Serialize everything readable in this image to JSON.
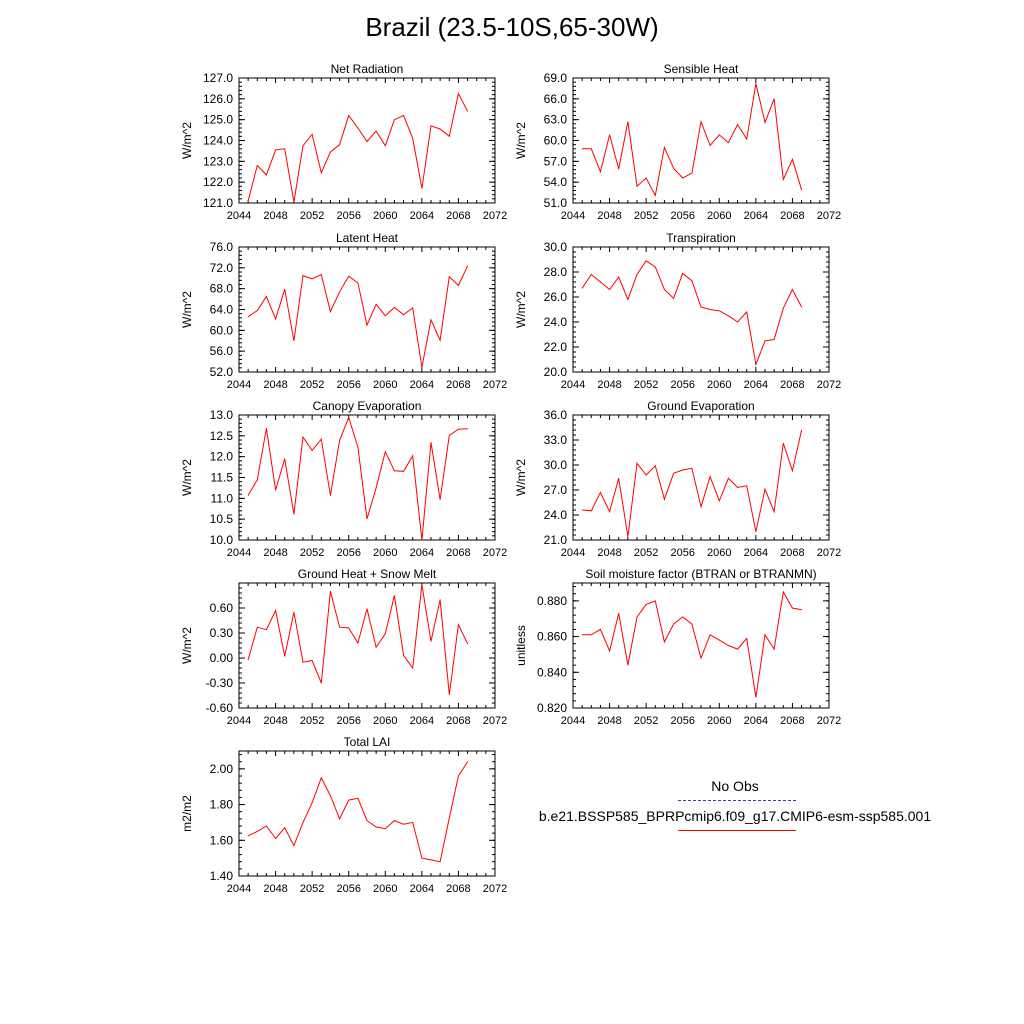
{
  "page": {
    "title": "Brazil (23.5-10S,65-30W)"
  },
  "legend": {
    "entries": [
      {
        "label": "No Obs",
        "color": "#3b3b9a",
        "style": "dashed"
      },
      {
        "label": "b.e21.BSSP585_BPRPcmip6.f09_g17.CMIP6-esm-ssp585.001",
        "color": "#ff0000",
        "style": "solid"
      }
    ]
  },
  "chart_data": [
    {
      "type": "line",
      "title": "Net Radiation",
      "xlabel": "",
      "ylabel": "W/m^2",
      "xlim": [
        2044,
        2072
      ],
      "ylim": [
        121.0,
        127.0
      ],
      "xticks": [
        "2044",
        "2048",
        "2052",
        "2056",
        "2060",
        "2064",
        "2068",
        "2072"
      ],
      "yticks": [
        "121.0",
        "122.0",
        "123.0",
        "124.0",
        "125.0",
        "126.0",
        "127.0"
      ],
      "series": [
        {
          "color": "#ff0000",
          "x": [
            2045,
            2046,
            2047,
            2048,
            2049,
            2050,
            2051,
            2052,
            2053,
            2054,
            2055,
            2056,
            2057,
            2058,
            2059,
            2060,
            2061,
            2062,
            2063,
            2064,
            2065,
            2066,
            2067,
            2068,
            2069
          ],
          "values": [
            121.1,
            122.8,
            122.35,
            123.55,
            123.6,
            121.05,
            123.75,
            124.3,
            122.45,
            123.45,
            123.8,
            125.2,
            124.6,
            123.95,
            124.45,
            123.75,
            125.0,
            125.2,
            124.1,
            121.7,
            124.7,
            124.55,
            124.2,
            126.25,
            125.4
          ]
        }
      ]
    },
    {
      "type": "line",
      "title": "Sensible Heat",
      "xlabel": "",
      "ylabel": "W/m^2",
      "xlim": [
        2044,
        2072
      ],
      "ylim": [
        51.0,
        69.0
      ],
      "xticks": [
        "2044",
        "2048",
        "2052",
        "2056",
        "2060",
        "2064",
        "2068",
        "2072"
      ],
      "yticks": [
        "51.0",
        "54.0",
        "57.0",
        "60.0",
        "63.0",
        "66.0",
        "69.0"
      ],
      "series": [
        {
          "color": "#ff0000",
          "x": [
            2045,
            2046,
            2047,
            2048,
            2049,
            2050,
            2051,
            2052,
            2053,
            2054,
            2055,
            2056,
            2057,
            2058,
            2059,
            2060,
            2061,
            2062,
            2063,
            2064,
            2065,
            2066,
            2067,
            2068,
            2069
          ],
          "values": [
            58.8,
            58.8,
            55.5,
            60.8,
            55.9,
            62.7,
            53.4,
            54.6,
            52.1,
            59.0,
            56.0,
            54.6,
            55.3,
            62.7,
            59.3,
            60.8,
            59.7,
            62.3,
            60.2,
            68.2,
            62.6,
            66.0,
            54.4,
            57.3,
            52.9
          ]
        }
      ]
    },
    {
      "type": "line",
      "title": "Latent Heat",
      "xlabel": "",
      "ylabel": "W/m^2",
      "xlim": [
        2044,
        2072
      ],
      "ylim": [
        52.0,
        76.0
      ],
      "xticks": [
        "2044",
        "2048",
        "2052",
        "2056",
        "2060",
        "2064",
        "2068",
        "2072"
      ],
      "yticks": [
        "52.0",
        "56.0",
        "60.0",
        "64.0",
        "68.0",
        "72.0",
        "76.0"
      ],
      "series": [
        {
          "color": "#ff0000",
          "x": [
            2045,
            2046,
            2047,
            2048,
            2049,
            2050,
            2051,
            2052,
            2053,
            2054,
            2055,
            2056,
            2057,
            2058,
            2059,
            2060,
            2061,
            2062,
            2063,
            2064,
            2065,
            2066,
            2067,
            2068,
            2069
          ],
          "values": [
            62.6,
            63.8,
            66.5,
            62.2,
            67.9,
            58.0,
            70.5,
            69.9,
            70.7,
            63.6,
            67.4,
            70.4,
            69.1,
            61.0,
            65.0,
            62.8,
            64.4,
            63.0,
            64.3,
            52.9,
            62.0,
            58.1,
            70.3,
            68.6,
            72.4
          ]
        }
      ]
    },
    {
      "type": "line",
      "title": "Transpiration",
      "xlabel": "",
      "ylabel": "W/m^2",
      "xlim": [
        2044,
        2072
      ],
      "ylim": [
        20.0,
        30.0
      ],
      "xticks": [
        "2044",
        "2048",
        "2052",
        "2056",
        "2060",
        "2064",
        "2068",
        "2072"
      ],
      "yticks": [
        "20.0",
        "22.0",
        "24.0",
        "26.0",
        "28.0",
        "30.0"
      ],
      "series": [
        {
          "color": "#ff0000",
          "x": [
            2045,
            2046,
            2047,
            2048,
            2049,
            2050,
            2051,
            2052,
            2053,
            2054,
            2055,
            2056,
            2057,
            2058,
            2059,
            2060,
            2061,
            2062,
            2063,
            2064,
            2065,
            2066,
            2067,
            2068,
            2069
          ],
          "values": [
            26.7,
            27.8,
            27.2,
            26.6,
            27.6,
            25.8,
            27.8,
            28.9,
            28.4,
            26.6,
            25.9,
            27.9,
            27.3,
            25.2,
            25.0,
            24.9,
            24.5,
            24.0,
            24.8,
            20.6,
            22.5,
            22.6,
            25.1,
            26.6,
            25.2
          ]
        }
      ]
    },
    {
      "type": "line",
      "title": "Canopy Evaporation",
      "xlabel": "",
      "ylabel": "W/m^2",
      "xlim": [
        2044,
        2072
      ],
      "ylim": [
        10.0,
        13.0
      ],
      "xticks": [
        "2044",
        "2048",
        "2052",
        "2056",
        "2060",
        "2064",
        "2068",
        "2072"
      ],
      "yticks": [
        "10.0",
        "10.5",
        "11.0",
        "11.5",
        "12.0",
        "12.5",
        "13.0"
      ],
      "series": [
        {
          "color": "#ff0000",
          "x": [
            2045,
            2046,
            2047,
            2048,
            2049,
            2050,
            2051,
            2052,
            2053,
            2054,
            2055,
            2056,
            2057,
            2058,
            2059,
            2060,
            2061,
            2062,
            2063,
            2064,
            2065,
            2066,
            2067,
            2068,
            2069
          ],
          "values": [
            11.07,
            11.45,
            12.68,
            11.2,
            11.95,
            10.62,
            12.47,
            12.15,
            12.42,
            11.07,
            12.39,
            12.94,
            12.23,
            10.51,
            11.25,
            12.12,
            11.66,
            11.65,
            12.02,
            10.0,
            12.34,
            10.97,
            12.51,
            12.66,
            12.67
          ]
        }
      ]
    },
    {
      "type": "line",
      "title": "Ground Evaporation",
      "xlabel": "",
      "ylabel": "W/m^2",
      "xlim": [
        2044,
        2072
      ],
      "ylim": [
        21.0,
        36.0
      ],
      "xticks": [
        "2044",
        "2048",
        "2052",
        "2056",
        "2060",
        "2064",
        "2068",
        "2072"
      ],
      "yticks": [
        "21.0",
        "24.0",
        "27.0",
        "30.0",
        "33.0",
        "36.0"
      ],
      "series": [
        {
          "color": "#ff0000",
          "x": [
            2045,
            2046,
            2047,
            2048,
            2049,
            2050,
            2051,
            2052,
            2053,
            2054,
            2055,
            2056,
            2057,
            2058,
            2059,
            2060,
            2061,
            2062,
            2063,
            2064,
            2065,
            2066,
            2067,
            2068,
            2069
          ],
          "values": [
            24.6,
            24.5,
            26.7,
            24.4,
            28.4,
            21.4,
            30.2,
            28.8,
            29.9,
            25.9,
            29.0,
            29.4,
            29.6,
            25.0,
            28.6,
            25.7,
            28.4,
            27.3,
            27.5,
            22.0,
            27.1,
            24.4,
            32.6,
            29.3,
            34.2
          ]
        }
      ]
    },
    {
      "type": "line",
      "title": "Ground Heat + Snow Melt",
      "xlabel": "",
      "ylabel": "W/m^2",
      "xlim": [
        2044,
        2072
      ],
      "ylim": [
        -0.6,
        0.9
      ],
      "xticks": [
        "2044",
        "2048",
        "2052",
        "2056",
        "2060",
        "2064",
        "2068",
        "2072"
      ],
      "yticks": [
        "-0.60",
        "-0.30",
        "0.00",
        "0.30",
        "0.60"
      ],
      "series": [
        {
          "color": "#ff0000",
          "x": [
            2045,
            2046,
            2047,
            2048,
            2049,
            2050,
            2051,
            2052,
            2053,
            2054,
            2055,
            2056,
            2057,
            2058,
            2059,
            2060,
            2061,
            2062,
            2063,
            2064,
            2065,
            2066,
            2067,
            2068,
            2069
          ],
          "values": [
            -0.02,
            0.37,
            0.34,
            0.57,
            0.02,
            0.55,
            -0.05,
            -0.03,
            -0.3,
            0.8,
            0.37,
            0.36,
            0.18,
            0.59,
            0.13,
            0.29,
            0.75,
            0.03,
            -0.12,
            0.88,
            0.2,
            0.7,
            -0.44,
            0.4,
            0.17
          ]
        }
      ]
    },
    {
      "type": "line",
      "title": "Soil moisture factor (BTRAN or BTRANMN)",
      "xlabel": "",
      "ylabel": "unitless",
      "xlim": [
        2044,
        2072
      ],
      "ylim": [
        0.82,
        0.89
      ],
      "xticks": [
        "2044",
        "2048",
        "2052",
        "2056",
        "2060",
        "2064",
        "2068",
        "2072"
      ],
      "yticks": [
        "0.820",
        "0.840",
        "0.860",
        "0.880"
      ],
      "series": [
        {
          "color": "#ff0000",
          "x": [
            2045,
            2046,
            2047,
            2048,
            2049,
            2050,
            2051,
            2052,
            2053,
            2054,
            2055,
            2056,
            2057,
            2058,
            2059,
            2060,
            2061,
            2062,
            2063,
            2064,
            2065,
            2066,
            2067,
            2068,
            2069
          ],
          "values": [
            0.861,
            0.861,
            0.864,
            0.852,
            0.873,
            0.844,
            0.871,
            0.878,
            0.88,
            0.857,
            0.867,
            0.871,
            0.867,
            0.848,
            0.861,
            0.858,
            0.855,
            0.853,
            0.859,
            0.826,
            0.861,
            0.853,
            0.885,
            0.876,
            0.875
          ]
        }
      ]
    },
    {
      "type": "line",
      "title": "Total LAI",
      "xlabel": "",
      "ylabel": "m2/m2",
      "xlim": [
        2044,
        2072
      ],
      "ylim": [
        1.4,
        2.1
      ],
      "xticks": [
        "2044",
        "2048",
        "2052",
        "2056",
        "2060",
        "2064",
        "2068",
        "2072"
      ],
      "yticks": [
        "1.40",
        "1.60",
        "1.80",
        "2.00"
      ],
      "series": [
        {
          "color": "#ff0000",
          "x": [
            2045,
            2046,
            2047,
            2048,
            2049,
            2050,
            2051,
            2052,
            2053,
            2054,
            2055,
            2056,
            2057,
            2058,
            2059,
            2060,
            2061,
            2062,
            2063,
            2064,
            2065,
            2066,
            2067,
            2068,
            2069
          ],
          "values": [
            1.625,
            1.65,
            1.68,
            1.61,
            1.67,
            1.57,
            1.7,
            1.81,
            1.95,
            1.85,
            1.72,
            1.825,
            1.835,
            1.71,
            1.675,
            1.665,
            1.71,
            1.69,
            1.7,
            1.5,
            1.49,
            1.48,
            1.725,
            1.96,
            2.04
          ]
        }
      ]
    }
  ]
}
